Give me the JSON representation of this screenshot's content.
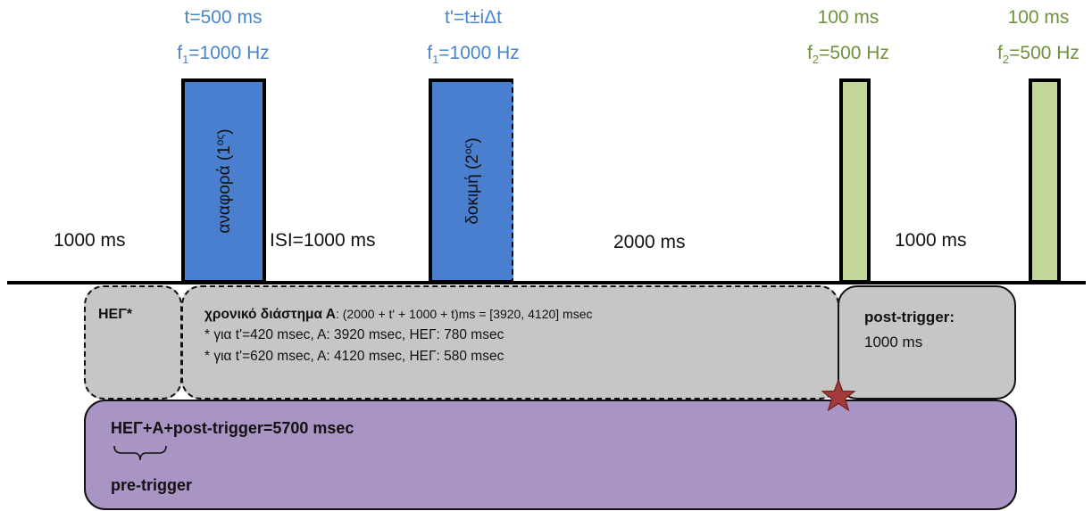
{
  "stimuli": {
    "reference": {
      "duration": "t=500 ms",
      "freq_prefix": "f",
      "freq_sub": "1",
      "freq_value": "=1000 Hz",
      "label": "αναφορά (1",
      "label_sup": "ος",
      "label_end": ")"
    },
    "test": {
      "duration": "t'=t±iΔt",
      "freq_prefix": "f",
      "freq_sub": "1",
      "freq_value": "=1000 Hz",
      "label": "δοκιμή (2",
      "label_sup": "ος",
      "label_end": ")"
    },
    "tone1": {
      "duration": "100 ms",
      "freq_prefix": "f",
      "freq_sub": "2",
      "freq_value": "=500 Hz"
    },
    "tone2": {
      "duration": "100 ms",
      "freq_prefix": "f",
      "freq_sub": "2",
      "freq_value": "=500 Hz"
    }
  },
  "intervals": {
    "pre": "1000 ms",
    "isi": "ISI=1000 ms",
    "gap": "2000 ms",
    "between_tones": "1000 ms"
  },
  "boxes": {
    "eeg": "ΗΕΓ*",
    "interval_a_title": "χρονικό διάστημα Α",
    "interval_a_formula": ": (2000 + t' + 1000 + t)ms = [3920, 4120] msec",
    "interval_a_line1": "* για t'=420 msec, A: 3920 msec, ΗΕΓ: 780 msec",
    "interval_a_line2": "* για t'=620 msec, A: 4120 msec, ΗΕΓ: 580 msec",
    "post_trigger_title": "post-trigger:",
    "post_trigger_value": "1000 ms",
    "total": "ΗΕΓ+Α+post-trigger=5700 msec",
    "pre_trigger": "pre-trigger"
  },
  "colors": {
    "blue_stimulus": "#4a7fd0",
    "green_stimulus": "#c3d69b",
    "grey_box": "#c6c6c6",
    "purple_box": "#a995c4",
    "star": "#a33a3a"
  }
}
